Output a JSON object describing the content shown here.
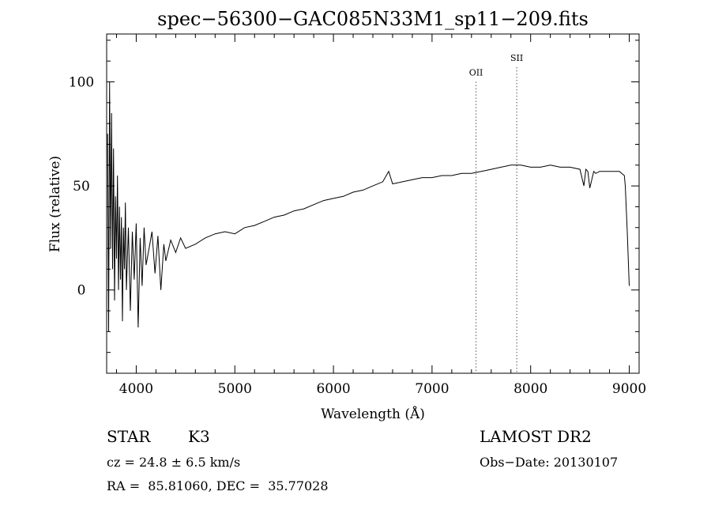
{
  "chart_data": {
    "type": "line",
    "title": "spec−56300−GAC085N33M1_sp11−209.fits",
    "xlabel": "Wavelength (Å)",
    "ylabel": "Flux (relative)",
    "xlim": [
      3700,
      9100
    ],
    "ylim": [
      -40,
      123
    ],
    "x_ticks": [
      4000,
      5000,
      6000,
      7000,
      8000,
      9000
    ],
    "y_ticks": [
      0,
      50,
      100
    ],
    "x_minor_step": 200,
    "y_minor_step": 10,
    "grid": false,
    "line_color": "#000000",
    "series": [
      {
        "x": [
          3710,
          3720,
          3730,
          3740,
          3750,
          3760,
          3770,
          3780,
          3790,
          3800,
          3810,
          3820,
          3830,
          3840,
          3850,
          3860,
          3870,
          3880,
          3890,
          3900,
          3920,
          3940,
          3960,
          3980,
          4000,
          4020,
          4040,
          4060,
          4080,
          4100,
          4130,
          4160,
          4190,
          4220,
          4250,
          4280,
          4300,
          4350,
          4400,
          4450,
          4500,
          4600,
          4700,
          4800,
          4900,
          5000,
          5100,
          5200,
          5300,
          5400,
          5500,
          5600,
          5700,
          5800,
          5900,
          6000,
          6100,
          6200,
          6300,
          6400,
          6500,
          6560,
          6600,
          6700,
          6800,
          6900,
          7000,
          7100,
          7200,
          7300,
          7400,
          7500,
          7600,
          7700,
          7800,
          7900,
          8000,
          8100,
          8200,
          8300,
          8400,
          8500,
          8540,
          8560,
          8580,
          8600,
          8640,
          8660,
          8700,
          8800,
          8900,
          8950,
          8960,
          8980,
          9000
        ],
        "y": [
          75,
          -20,
          100,
          20,
          85,
          10,
          68,
          -5,
          45,
          15,
          55,
          0,
          40,
          5,
          35,
          -15,
          30,
          10,
          42,
          0,
          30,
          -10,
          28,
          5,
          32,
          -18,
          25,
          2,
          30,
          12,
          20,
          28,
          8,
          26,
          0,
          22,
          14,
          24,
          18,
          25,
          20,
          22,
          25,
          27,
          28,
          27,
          30,
          31,
          33,
          35,
          36,
          38,
          39,
          41,
          43,
          44,
          45,
          47,
          48,
          50,
          52,
          57,
          51,
          52,
          53,
          54,
          54,
          55,
          55,
          56,
          56,
          57,
          58,
          59,
          60,
          60,
          59,
          59,
          60,
          59,
          59,
          58,
          50,
          58,
          57,
          49,
          57,
          56,
          57,
          57,
          57,
          55,
          50,
          28,
          2
        ]
      }
    ],
    "annotations": [
      {
        "label": "OII",
        "x": 7446,
        "label_y": 103
      },
      {
        "label": "SII",
        "x": 7859,
        "label_y": 110
      }
    ]
  },
  "info": {
    "class": "STAR",
    "subclass": "K3",
    "survey": "LAMOST DR2",
    "cz": "cz = 24.8 ± 6.5 km/s",
    "obs_date": "Obs−Date: 20130107",
    "coords": "RA =  85.81060, DEC =  35.77028"
  }
}
